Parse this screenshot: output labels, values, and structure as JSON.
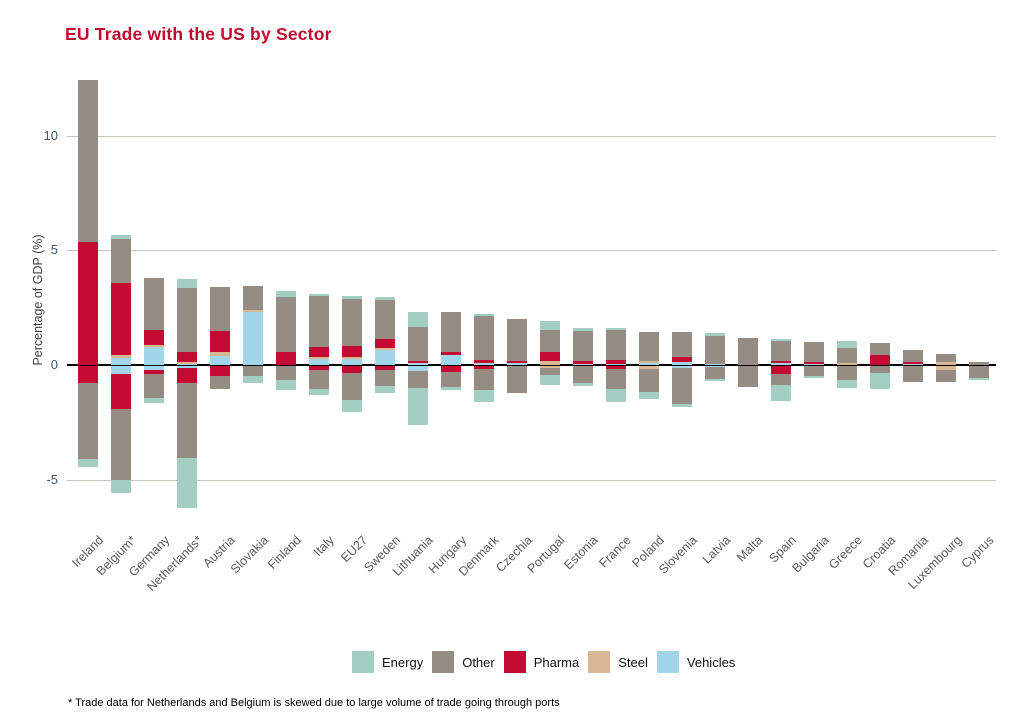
{
  "title": "EU Trade with the US by Sector",
  "title_color": "#C00A2E",
  "y_axis": {
    "label": "Percentage of GDP (%)",
    "ticks": [
      10,
      5,
      0,
      -5
    ]
  },
  "footnote": "* Trade data for Netherlands and Belgium is skewed due to large volume of trade going through ports",
  "sector_colors": {
    "energy": "#A2CFC2",
    "other": "#958D84",
    "pharma": "#C40B33",
    "steel": "#D8B795",
    "vehicles": "#A3D5EA"
  },
  "legend": [
    {
      "key": "energy",
      "label": "Energy"
    },
    {
      "key": "other",
      "label": "Other"
    },
    {
      "key": "pharma",
      "label": "Pharma"
    },
    {
      "key": "steel",
      "label": "Steel"
    },
    {
      "key": "vehicles",
      "label": "Vehicles"
    }
  ],
  "chart_data": {
    "type": "bar",
    "stacked": true,
    "diverging": true,
    "unit": "% of GDP",
    "ylabel": "Percentage of GDP (%)",
    "ylim": [
      -6.6,
      12.6
    ],
    "gridlines": [
      10,
      5,
      0,
      -5
    ],
    "stack_order_from_zero": [
      "vehicles",
      "steel",
      "pharma",
      "other",
      "energy"
    ],
    "categories": [
      "Ireland",
      "Belgium*",
      "Germany",
      "Netherlands*",
      "Austria",
      "Slovakia",
      "Finland",
      "Italy",
      "EU27",
      "Sweden",
      "Lithuania",
      "Hungary",
      "Denmark",
      "Czechia",
      "Portugal",
      "Estonia",
      "France",
      "Poland",
      "Slovenia",
      "Latvia",
      "Malta",
      "Spain",
      "Bulgaria",
      "Greece",
      "Croatia",
      "Romania",
      "Luxembourg",
      "Cyprus"
    ],
    "countries": [
      {
        "name": "Ireland",
        "positive": {
          "pharma": 5.35,
          "other": 7.1
        },
        "negative": {
          "pharma": 0.75,
          "other": 3.3,
          "energy": 0.35
        }
      },
      {
        "name": "Belgium*",
        "positive": {
          "vehicles": 0.29,
          "steel": 0.15,
          "pharma": 3.13,
          "other": 1.93,
          "energy": 0.18
        },
        "negative": {
          "vehicles": 0.34,
          "pharma": 1.52,
          "other": 3.1,
          "energy": 0.58
        }
      },
      {
        "name": "Germany",
        "positive": {
          "vehicles": 0.8,
          "steel": 0.09,
          "pharma": 0.63,
          "other": 2.28
        },
        "negative": {
          "vehicles": 0.18,
          "pharma": 0.17,
          "other": 1.05,
          "energy": 0.2
        }
      },
      {
        "name": "Netherlands*",
        "positive": {
          "vehicles": 0.04,
          "steel": 0.08,
          "pharma": 0.45,
          "other": 2.78,
          "energy": 0.4
        },
        "negative": {
          "vehicles": 0.1,
          "pharma": 0.63,
          "other": 3.27,
          "energy": 2.2
        }
      },
      {
        "name": "Austria",
        "positive": {
          "vehicles": 0.38,
          "steel": 0.18,
          "pharma": 0.92,
          "other": 1.92
        },
        "negative": {
          "pharma": 0.45,
          "other": 0.57
        }
      },
      {
        "name": "Slovakia",
        "positive": {
          "vehicles": 2.33,
          "steel": 0.07,
          "other": 1.05
        },
        "negative": {
          "other": 0.45,
          "energy": 0.28
        }
      },
      {
        "name": "Finland",
        "positive": {
          "pharma": 0.55,
          "other": 2.4,
          "energy": 0.28
        },
        "negative": {
          "other": 0.6,
          "energy": 0.45
        }
      },
      {
        "name": "Italy",
        "positive": {
          "vehicles": 0.25,
          "steel": 0.09,
          "pharma": 0.44,
          "other": 2.22,
          "energy": 0.1
        },
        "negative": {
          "pharma": 0.17,
          "other": 0.83,
          "energy": 0.27
        }
      },
      {
        "name": "EU27",
        "positive": {
          "vehicles": 0.25,
          "steel": 0.1,
          "pharma": 0.5,
          "other": 2.02,
          "energy": 0.14
        },
        "negative": {
          "pharma": 0.31,
          "other": 1.19,
          "energy": 0.49
        }
      },
      {
        "name": "Sweden",
        "positive": {
          "vehicles": 0.65,
          "steel": 0.09,
          "pharma": 0.4,
          "other": 1.7,
          "energy": 0.14
        },
        "negative": {
          "pharma": 0.19,
          "other": 0.68,
          "energy": 0.29
        }
      },
      {
        "name": "Lithuania",
        "positive": {
          "vehicles": 0.07,
          "pharma": 0.1,
          "other": 1.47,
          "energy": 0.69
        },
        "negative": {
          "vehicles": 0.22,
          "other": 0.73,
          "energy": 1.64
        }
      },
      {
        "name": "Hungary",
        "positive": {
          "vehicles": 0.44,
          "pharma": 0.14,
          "other": 1.71
        },
        "negative": {
          "pharma": 0.25,
          "other": 0.68,
          "energy": 0.1
        }
      },
      {
        "name": "Denmark",
        "positive": {
          "vehicles": 0.07,
          "pharma": 0.16,
          "other": 1.92,
          "energy": 0.06
        },
        "negative": {
          "pharma": 0.15,
          "other": 0.88,
          "energy": 0.55
        }
      },
      {
        "name": "Czechia",
        "positive": {
          "vehicles": 0.1,
          "pharma": 0.09,
          "other": 1.8
        },
        "negative": {
          "other": 1.17
        }
      },
      {
        "name": "Portugal",
        "positive": {
          "steel": 0.17,
          "pharma": 0.4,
          "other": 0.96,
          "energy": 0.4
        },
        "negative": {
          "steel": 0.07,
          "other": 0.34,
          "energy": 0.43
        }
      },
      {
        "name": "Estonia",
        "positive": {
          "vehicles": 0.06,
          "pharma": 0.1,
          "other": 1.32,
          "energy": 0.15
        },
        "negative": {
          "other": 0.73,
          "energy": 0.15
        }
      },
      {
        "name": "France",
        "positive": {
          "vehicles": 0.04,
          "pharma": 0.18,
          "other": 1.31,
          "energy": 0.07
        },
        "negative": {
          "pharma": 0.15,
          "other": 0.87,
          "energy": 0.54
        }
      },
      {
        "name": "Poland",
        "positive": {
          "vehicles": 0.07,
          "steel": 0.1,
          "other": 1.26
        },
        "negative": {
          "steel": 0.12,
          "other": 1.0,
          "energy": 0.31
        }
      },
      {
        "name": "Slovenia",
        "positive": {
          "vehicles": 0.11,
          "pharma": 0.24,
          "other": 1.07
        },
        "negative": {
          "vehicles": 0.07,
          "other": 1.6,
          "energy": 0.12
        }
      },
      {
        "name": "Latvia",
        "positive": {
          "vehicles": 0.05,
          "other": 1.23,
          "energy": 0.1
        },
        "negative": {
          "vehicles": 0.06,
          "other": 0.5,
          "energy": 0.1
        }
      },
      {
        "name": "Malta",
        "positive": {
          "other": 1.19
        },
        "negative": {
          "other": 0.92
        }
      },
      {
        "name": "Spain",
        "positive": {
          "vehicles": 0.07,
          "pharma": 0.1,
          "other": 0.88,
          "energy": 0.07
        },
        "negative": {
          "pharma": 0.35,
          "other": 0.5,
          "energy": 0.68
        }
      },
      {
        "name": "Bulgaria",
        "positive": {
          "vehicles": 0.04,
          "pharma": 0.11,
          "other": 0.85
        },
        "negative": {
          "other": 0.44,
          "energy": 0.07
        }
      },
      {
        "name": "Greece",
        "positive": {
          "steel": 0.1,
          "other": 0.66,
          "energy": 0.29
        },
        "negative": {
          "other": 0.61,
          "energy": 0.37
        }
      },
      {
        "name": "Croatia",
        "positive": {
          "pharma": 0.44,
          "other": 0.51
        },
        "negative": {
          "other": 0.3,
          "energy": 0.72
        }
      },
      {
        "name": "Romania",
        "positive": {
          "vehicles": 0.05,
          "pharma": 0.1,
          "other": 0.5
        },
        "negative": {
          "other": 0.7
        }
      },
      {
        "name": "Luxembourg",
        "positive": {
          "steel": 0.15,
          "other": 0.35
        },
        "negative": {
          "steel": 0.19,
          "other": 0.52
        }
      },
      {
        "name": "Cyprus",
        "positive": {
          "other": 0.15
        },
        "negative": {
          "other": 0.52,
          "energy": 0.08
        }
      }
    ]
  }
}
